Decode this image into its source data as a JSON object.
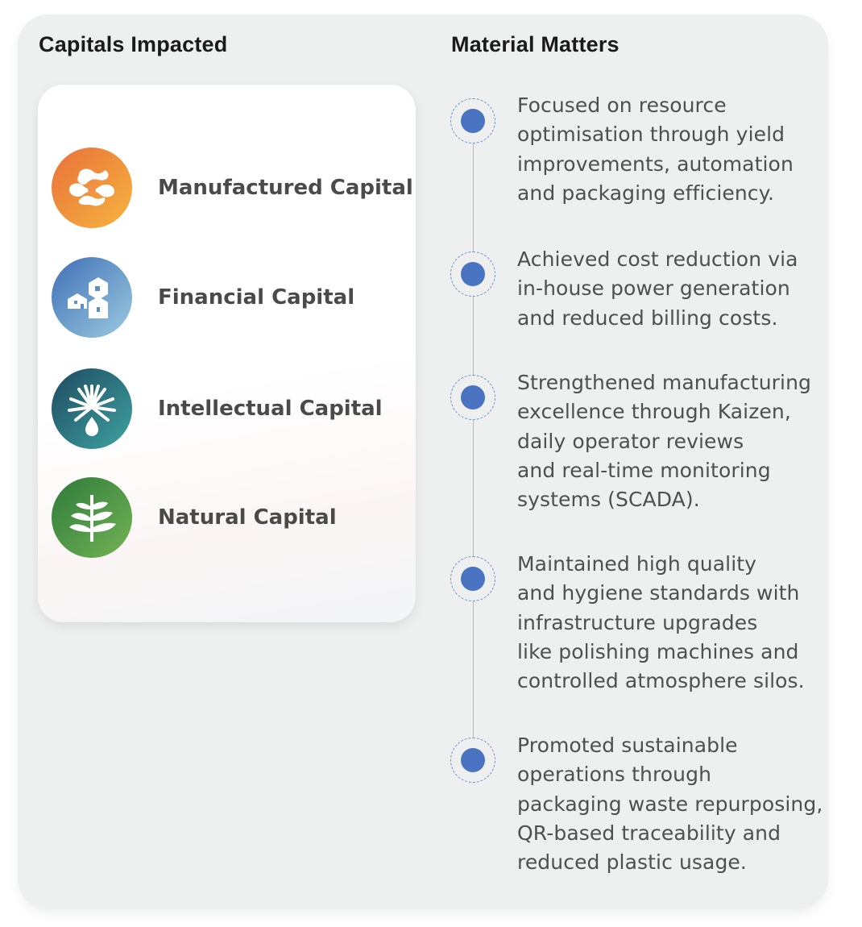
{
  "headings": {
    "capitals": "Capitals Impacted",
    "material": "Material Matters"
  },
  "capitals": [
    {
      "label": "Manufactured Capital",
      "icon": "manufactured-capital-icon",
      "colors": [
        "#e9713a",
        "#f6b43f"
      ]
    },
    {
      "label": "Financial Capital",
      "icon": "financial-capital-icon",
      "colors": [
        "#3f6fb6",
        "#9ccbe0"
      ]
    },
    {
      "label": "Intellectual Capital",
      "icon": "intellectual-capital-icon",
      "colors": [
        "#1d4a62",
        "#3fa3a0"
      ]
    },
    {
      "label": "Natural Capital",
      "icon": "natural-capital-icon",
      "colors": [
        "#2f7a3a",
        "#73b456"
      ]
    }
  ],
  "material_matters": [
    "Focused on resource\noptimisation through yield\nimprovements, automation\nand packaging efficiency.",
    "Achieved cost reduction via\nin-house power generation\nand reduced billing costs.",
    "Strengthened manufacturing\nexcellence through Kaizen,\ndaily operator reviews\nand real-time monitoring\nsystems (SCADA).",
    "Maintained high quality\nand hygiene standards with\ninfrastructure upgrades\nlike polishing machines and\ncontrolled atmosphere silos.",
    "Promoted sustainable\noperations through\npackaging waste repurposing,\nQR-based traceability and\nreduced plastic usage."
  ],
  "accent_color": "#4a74c2"
}
